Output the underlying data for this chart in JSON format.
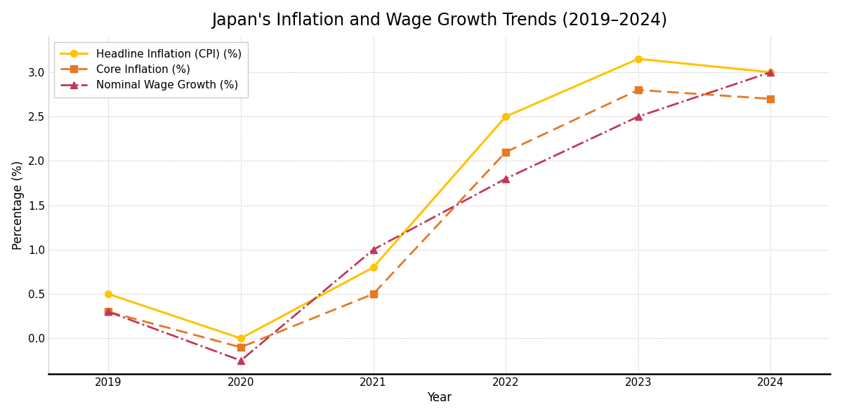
{
  "title": "Japan's Inflation and Wage Growth Trends (2019–2024)",
  "xlabel": "Year",
  "ylabel": "Percentage (%)",
  "years": [
    2019,
    2020,
    2021,
    2022,
    2023,
    2024
  ],
  "headline_inflation": [
    0.5,
    0.0,
    0.8,
    2.5,
    3.15,
    3.0
  ],
  "core_inflation": [
    0.3,
    -0.1,
    0.5,
    2.1,
    2.8,
    2.7
  ],
  "nominal_wage_growth": [
    0.3,
    -0.25,
    1.0,
    1.8,
    2.5,
    3.0
  ],
  "headline_color": "#FFC300",
  "core_color": "#E87722",
  "wage_color": "#C0395A",
  "background_color": "#FFFFFF",
  "grid_color": "#BBBBBB",
  "ylim": [
    -0.4,
    3.4
  ],
  "title_fontsize": 17,
  "label_fontsize": 12,
  "tick_fontsize": 11,
  "legend_fontsize": 11,
  "figwidth": 11.99,
  "figheight": 5.93,
  "dpi": 100
}
